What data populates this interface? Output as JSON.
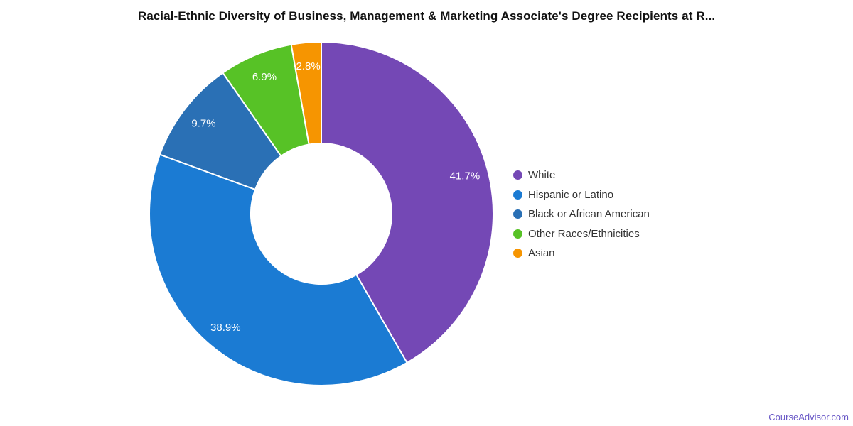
{
  "title": "Racial-Ethnic Diversity of Business, Management & Marketing Associate's Degree Recipients at R...",
  "footer": {
    "link_text": "CourseAdvisor.com",
    "link_color": "#6857c6"
  },
  "chart_data": {
    "type": "pie",
    "donut": true,
    "start_angle_deg": 0,
    "direction": "clockwise",
    "legend_position": "right",
    "labels_inside": true,
    "label_color": "#ffffff",
    "slice_border_color": "#ffffff",
    "title": "Racial-Ethnic Diversity of Business, Management & Marketing Associate's Degree Recipients at R...",
    "slices": [
      {
        "label": "White",
        "value": 41.7,
        "display": "41.7%",
        "color": "#7448b5"
      },
      {
        "label": "Hispanic or Latino",
        "value": 38.9,
        "display": "38.9%",
        "color": "#1b7bd3"
      },
      {
        "label": "Black or African American",
        "value": 9.7,
        "display": "9.7%",
        "color": "#2a70b5"
      },
      {
        "label": "Other Races/Ethnicities",
        "value": 6.9,
        "display": "6.9%",
        "color": "#57c226"
      },
      {
        "label": "Asian",
        "value": 2.8,
        "display": "2.8%",
        "color": "#f69501"
      }
    ]
  }
}
